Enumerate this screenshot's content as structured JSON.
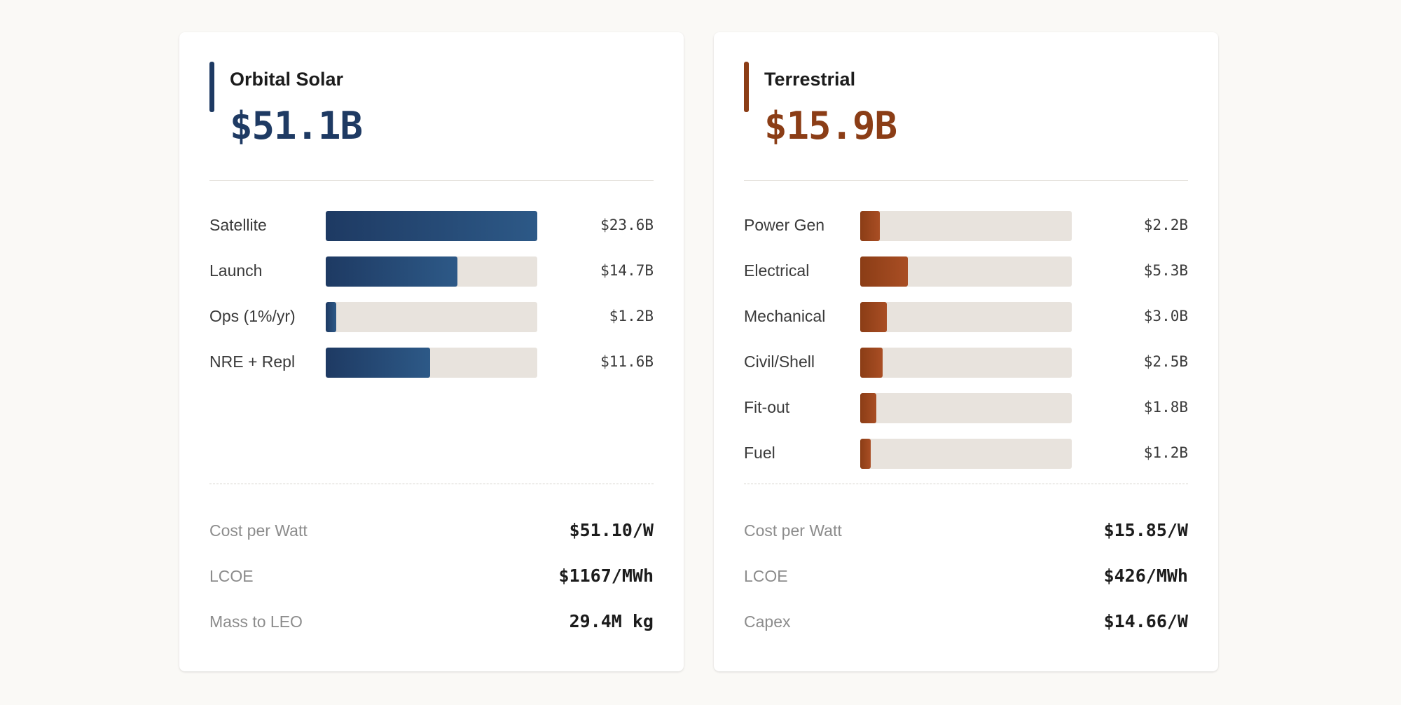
{
  "colors": {
    "orbital_accent": "#1e3a63",
    "terrestrial_accent": "#8b3d16",
    "bar_track": "#e8e3dd",
    "background": "#faf9f6"
  },
  "cards": [
    {
      "title": "Orbital Solar",
      "total": "$51.1B",
      "theme": "navy",
      "breakdown": [
        {
          "label": "Satellite",
          "value": "$23.6B",
          "fraction": 1.0
        },
        {
          "label": "Launch",
          "value": "$14.7B",
          "fraction": 0.623
        },
        {
          "label": "Ops (1%/yr)",
          "value": "$1.2B",
          "fraction": 0.051
        },
        {
          "label": "NRE + Repl",
          "value": "$11.6B",
          "fraction": 0.492
        }
      ],
      "metrics": [
        {
          "label": "Cost per Watt",
          "value": "$51.10/W"
        },
        {
          "label": "LCOE",
          "value": "$1167/MWh"
        },
        {
          "label": "Mass to LEO",
          "value": "29.4M kg"
        }
      ]
    },
    {
      "title": "Terrestrial",
      "total": "$15.9B",
      "theme": "rust",
      "breakdown": [
        {
          "label": "Power Gen",
          "value": "$2.2B",
          "fraction": 0.093
        },
        {
          "label": "Electrical",
          "value": "$5.3B",
          "fraction": 0.225
        },
        {
          "label": "Mechanical",
          "value": "$3.0B",
          "fraction": 0.127
        },
        {
          "label": "Civil/Shell",
          "value": "$2.5B",
          "fraction": 0.106
        },
        {
          "label": "Fit-out",
          "value": "$1.8B",
          "fraction": 0.076
        },
        {
          "label": "Fuel",
          "value": "$1.2B",
          "fraction": 0.051
        }
      ],
      "metrics": [
        {
          "label": "Cost per Watt",
          "value": "$15.85/W"
        },
        {
          "label": "LCOE",
          "value": "$426/MWh"
        },
        {
          "label": "Capex",
          "value": "$14.66/W"
        }
      ]
    }
  ]
}
